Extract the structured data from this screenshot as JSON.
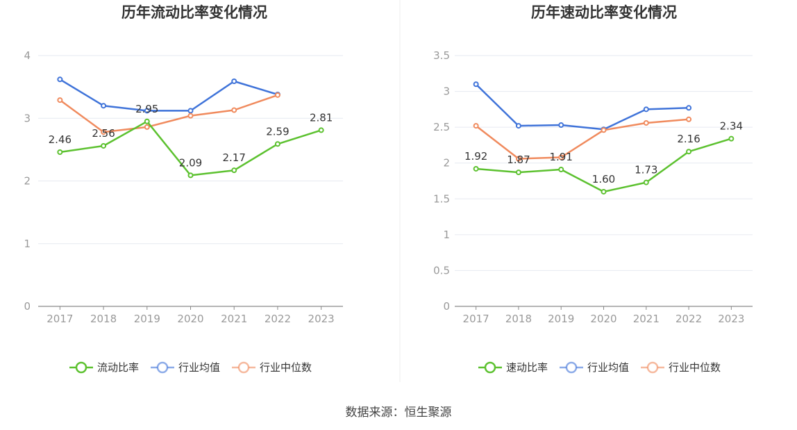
{
  "source": "数据来源：恒生聚源",
  "colors": {
    "company": "#5cc12f",
    "avg": "#3f73d9",
    "median": "#f08a5d"
  },
  "chart_data": [
    {
      "type": "line",
      "title": "历年流动比率变化情况",
      "categories": [
        "2017",
        "2018",
        "2019",
        "2020",
        "2021",
        "2022",
        "2023"
      ],
      "ylim": [
        0,
        4
      ],
      "yticks": [
        0,
        1,
        2,
        3,
        4
      ],
      "ytick_labels": [
        "0",
        "1",
        "2",
        "3",
        "4"
      ],
      "grid": true,
      "legend_position": "bottom",
      "series": [
        {
          "name": "流动比率",
          "color": "#5cc12f",
          "values": [
            2.46,
            2.56,
            2.95,
            2.09,
            2.17,
            2.59,
            2.81
          ],
          "labels": [
            "2.46",
            "2.56",
            "2.95",
            "2.09",
            "2.17",
            "2.59",
            "2.81"
          ]
        },
        {
          "name": "行业均值",
          "color": "#3f73d9",
          "values": [
            3.62,
            3.2,
            3.12,
            3.12,
            3.59,
            3.38,
            null
          ]
        },
        {
          "name": "行业中位数",
          "color": "#f08a5d",
          "values": [
            3.29,
            2.78,
            2.86,
            3.04,
            3.13,
            3.37,
            null
          ]
        }
      ]
    },
    {
      "type": "line",
      "title": "历年速动比率变化情况",
      "categories": [
        "2017",
        "2018",
        "2019",
        "2020",
        "2021",
        "2022",
        "2023"
      ],
      "ylim": [
        0,
        3.5
      ],
      "yticks": [
        0,
        0.5,
        1,
        1.5,
        2,
        2.5,
        3,
        3.5
      ],
      "ytick_labels": [
        "0",
        "0.5",
        "1",
        "1.5",
        "2",
        "2.5",
        "3",
        "3.5"
      ],
      "grid": true,
      "legend_position": "bottom",
      "series": [
        {
          "name": "速动比率",
          "color": "#5cc12f",
          "values": [
            1.92,
            1.87,
            1.91,
            1.6,
            1.73,
            2.16,
            2.34
          ],
          "labels": [
            "1.92",
            "1.87",
            "1.91",
            "1.60",
            "1.73",
            "2.16",
            "2.34"
          ]
        },
        {
          "name": "行业均值",
          "color": "#3f73d9",
          "values": [
            3.1,
            2.52,
            2.53,
            2.47,
            2.75,
            2.77,
            null
          ]
        },
        {
          "name": "行业中位数",
          "color": "#f08a5d",
          "values": [
            2.52,
            2.06,
            2.08,
            2.46,
            2.56,
            2.61,
            null
          ]
        }
      ]
    }
  ]
}
